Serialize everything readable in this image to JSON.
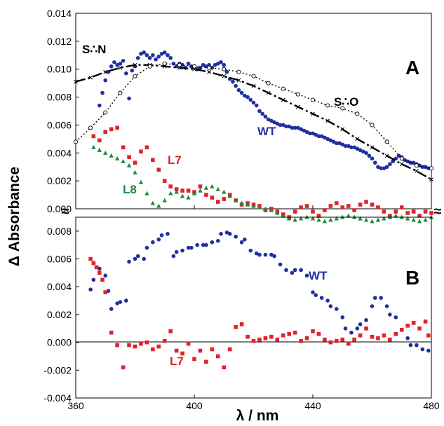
{
  "chart_data": {
    "type": "scatter",
    "xlabel": "λ / nm",
    "ylabel": "Δ Absorbance",
    "x_ticks": [
      "360",
      "400",
      "440",
      "480"
    ],
    "xlim": [
      360,
      480
    ],
    "panels": [
      {
        "label": "A",
        "ylim": [
          0,
          0.014
        ],
        "y_ticks": [
          "0.000",
          "0.002",
          "0.004",
          "0.006",
          "0.008",
          "0.010",
          "0.012",
          "0.014"
        ],
        "series": [
          {
            "name": "WT",
            "color": "#1f2fa0",
            "marker": "circle",
            "x": [
              368,
              369,
              370,
              371,
              372,
              373,
              374,
              375,
              376,
              377,
              378,
              379,
              380,
              381,
              382,
              383,
              384,
              385,
              386,
              387,
              388,
              389,
              390,
              391,
              392,
              393,
              394,
              395,
              396,
              397,
              398,
              399,
              400,
              401,
              402,
              403,
              404,
              405,
              406,
              407,
              408,
              409,
              410,
              411,
              412,
              413,
              414,
              415,
              416,
              417,
              418,
              419,
              420,
              421,
              422,
              423,
              424,
              425,
              426,
              427,
              428,
              429,
              430,
              431,
              432,
              433,
              434,
              435,
              436,
              437,
              438,
              439,
              440,
              441,
              442,
              443,
              444,
              445,
              446,
              447,
              448,
              449,
              450,
              451,
              452,
              453,
              454,
              455,
              456,
              457,
              458,
              459,
              460,
              461,
              462,
              463,
              464,
              465,
              466,
              467,
              468,
              469,
              470,
              471,
              472,
              473,
              474,
              475,
              476,
              477,
              478,
              479
            ],
            "y": [
              0.0074,
              0.0083,
              0.0092,
              0.0098,
              0.0102,
              0.0105,
              0.0103,
              0.0104,
              0.0106,
              0.0097,
              0.0079,
              0.0099,
              0.0102,
              0.0108,
              0.0111,
              0.0112,
              0.011,
              0.0108,
              0.011,
              0.0107,
              0.0109,
              0.0111,
              0.0112,
              0.011,
              0.0108,
              0.0104,
              0.0102,
              0.0104,
              0.0103,
              0.0101,
              0.0104,
              0.0102,
              0.0102,
              0.01,
              0.0101,
              0.0103,
              0.0102,
              0.0103,
              0.0101,
              0.0103,
              0.0104,
              0.0105,
              0.0103,
              0.0098,
              0.0093,
              0.0091,
              0.0088,
              0.0085,
              0.0083,
              0.0081,
              0.008,
              0.0078,
              0.0076,
              0.0074,
              0.007,
              0.0068,
              0.0066,
              0.0064,
              0.0063,
              0.0062,
              0.0061,
              0.006,
              0.006,
              0.0059,
              0.0059,
              0.0058,
              0.0058,
              0.0058,
              0.0057,
              0.0056,
              0.0055,
              0.0054,
              0.0054,
              0.0053,
              0.0052,
              0.0052,
              0.0051,
              0.005,
              0.0049,
              0.0048,
              0.0047,
              0.0047,
              0.0046,
              0.0045,
              0.0045,
              0.0044,
              0.0044,
              0.0043,
              0.0042,
              0.0041,
              0.004,
              0.0038,
              0.0036,
              0.0033,
              0.003,
              0.0029,
              0.0029,
              0.003,
              0.0032,
              0.0034,
              0.0036,
              0.0038,
              0.0037,
              0.0035,
              0.0034,
              0.0033,
              0.0033,
              0.0032,
              0.0031,
              0.003,
              0.003,
              0.0029
            ]
          },
          {
            "name": "S∴N",
            "color": "#000000",
            "marker": "x",
            "line": "dash-dot",
            "x": [
              360,
              365,
              370,
              375,
              380,
              385,
              390,
              395,
              400,
              405,
              410,
              415,
              420,
              425,
              430,
              435,
              440,
              445,
              450,
              455,
              460,
              465,
              470,
              475,
              480
            ],
            "y": [
              0.0091,
              0.0094,
              0.0098,
              0.0101,
              0.0103,
              0.0103,
              0.0102,
              0.0101,
              0.01,
              0.0098,
              0.0095,
              0.0092,
              0.0088,
              0.0083,
              0.0078,
              0.0073,
              0.0068,
              0.0063,
              0.0057,
              0.005,
              0.0044,
              0.0038,
              0.0032,
              0.0027,
              0.0021
            ]
          },
          {
            "name": "S∴O",
            "color": "#000000",
            "marker": "open-circle",
            "line": "dotted",
            "x": [
              360,
              365,
              370,
              375,
              380,
              385,
              390,
              395,
              400,
              405,
              410,
              415,
              420,
              425,
              430,
              435,
              440,
              445,
              450,
              455,
              460,
              465,
              470,
              475,
              480
            ],
            "y": [
              0.0048,
              0.0058,
              0.0069,
              0.0083,
              0.0095,
              0.0102,
              0.0104,
              0.0103,
              0.0102,
              0.0101,
              0.01,
              0.0098,
              0.0095,
              0.009,
              0.0086,
              0.0082,
              0.0078,
              0.0074,
              0.0072,
              0.0068,
              0.006,
              0.0048,
              0.0036,
              0.0031,
              0.0029
            ]
          },
          {
            "name": "L7",
            "color": "#e2222a",
            "marker": "square",
            "x": [
              366,
              368,
              370,
              372,
              374,
              376,
              378,
              380,
              382,
              384,
              386,
              388,
              390,
              392,
              394,
              396,
              398,
              400,
              402,
              404,
              406,
              408,
              410,
              412,
              414,
              416,
              418,
              420,
              422,
              424,
              426,
              428,
              430,
              432,
              434,
              436,
              438,
              440,
              442,
              444,
              446,
              448,
              450,
              452,
              454,
              456,
              458,
              460,
              462,
              464,
              466,
              468,
              470,
              472,
              474,
              476,
              478,
              480
            ],
            "y": [
              0.0052,
              0.0049,
              0.0055,
              0.0057,
              0.0058,
              0.0044,
              0.0037,
              0.0033,
              0.0041,
              0.0044,
              0.0035,
              0.0028,
              0.002,
              0.0016,
              0.0014,
              0.0013,
              0.0013,
              0.0012,
              0.0016,
              0.001,
              0.0008,
              0.0005,
              0.0007,
              0.001,
              0.0006,
              0.0003,
              0.0004,
              0.0003,
              0.0002,
              -0.0001,
              0.0,
              -0.0002,
              -0.0004,
              -0.0006,
              -0.0002,
              0.0001,
              0.0002,
              -0.0002,
              -0.0005,
              -0.0001,
              0.0002,
              0.0004,
              0.0001,
              0.0002,
              -0.0001,
              0.0003,
              0.0005,
              0.0003,
              0.0001,
              -0.0002,
              -0.0005,
              -0.0002,
              0.0001,
              -0.0003,
              -0.0002,
              -0.0005,
              -0.0002,
              -0.0003
            ]
          },
          {
            "name": "L8",
            "color": "#1d8a3a",
            "marker": "triangle",
            "x": [
              366,
              368,
              370,
              372,
              374,
              376,
              378,
              380,
              382,
              384,
              386,
              388,
              390,
              392,
              394,
              396,
              398,
              400,
              402,
              404,
              406,
              408,
              410,
              412,
              414,
              416,
              418,
              420,
              422,
              424,
              426,
              428,
              430,
              432,
              434,
              436,
              438,
              440,
              442,
              444,
              446,
              448,
              450,
              452,
              454,
              456,
              458,
              460,
              462,
              464,
              466,
              468,
              470,
              472,
              474,
              476,
              478,
              480
            ],
            "y": [
              0.0044,
              0.0042,
              0.004,
              0.0038,
              0.0036,
              0.0034,
              0.0031,
              0.0026,
              0.0019,
              0.0011,
              0.0004,
              0.0002,
              0.0006,
              0.0011,
              0.0012,
              0.0009,
              0.0008,
              0.0011,
              0.0013,
              0.0015,
              0.0016,
              0.0014,
              0.0012,
              0.0009,
              0.0006,
              0.0004,
              0.0003,
              0.0002,
              0.0001,
              0.0,
              -0.0001,
              -0.0003,
              -0.0005,
              -0.0007,
              -0.0008,
              -0.0007,
              -0.0006,
              -0.0007,
              -0.0008,
              -0.0009,
              -0.0008,
              -0.0007,
              -0.0006,
              -0.0005,
              -0.0006,
              -0.0007,
              -0.0008,
              -0.0009,
              -0.0008,
              -0.0007,
              -0.0006,
              -0.0005,
              -0.0006,
              -0.0007,
              -0.0008,
              -0.0009,
              -0.0008,
              -0.0006
            ]
          }
        ],
        "annotations": [
          "S∴N",
          "S∴O",
          "WT",
          "L7",
          "L8"
        ]
      },
      {
        "label": "B",
        "ylim": [
          -0.004,
          0.009
        ],
        "y_ticks": [
          "-0.004",
          "-0.002",
          "0.000",
          "0.002",
          "0.004",
          "0.006",
          "0.008"
        ],
        "series": [
          {
            "name": "WT",
            "color": "#1f2fa0",
            "marker": "circle",
            "x": [
              365,
              366,
              368,
              370,
              371,
              372,
              374,
              375,
              377,
              378,
              380,
              381,
              383,
              384,
              386,
              388,
              389,
              391,
              393,
              394,
              396,
              398,
              399,
              401,
              403,
              404,
              406,
              408,
              409,
              411,
              412,
              414,
              416,
              417,
              419,
              421,
              422,
              424,
              426,
              427,
              429,
              431,
              433,
              434,
              436,
              438,
              440,
              441,
              443,
              445,
              446,
              448,
              450,
              451,
              453,
              455,
              456,
              458,
              460,
              461,
              463,
              465,
              466,
              468,
              470,
              472,
              473,
              475,
              477,
              479
            ],
            "y": [
              0.0038,
              0.0045,
              0.0053,
              0.0048,
              0.0037,
              0.0024,
              0.0028,
              0.0029,
              0.003,
              0.0058,
              0.006,
              0.0062,
              0.006,
              0.0068,
              0.0072,
              0.0074,
              0.0077,
              0.0078,
              0.0062,
              0.0065,
              0.0066,
              0.0068,
              0.0068,
              0.007,
              0.007,
              0.007,
              0.0072,
              0.0073,
              0.0078,
              0.0079,
              0.0078,
              0.0076,
              0.0072,
              0.0074,
              0.0066,
              0.0064,
              0.0063,
              0.0063,
              0.0063,
              0.0062,
              0.0056,
              0.0052,
              0.005,
              0.0052,
              0.0052,
              0.0048,
              0.0036,
              0.0034,
              0.0032,
              0.003,
              0.0026,
              0.0024,
              0.0018,
              0.001,
              0.0007,
              0.001,
              0.0013,
              0.0016,
              0.0026,
              0.0032,
              0.0032,
              0.0026,
              0.002,
              0.0018,
              0.0009,
              0.0003,
              -0.0002,
              -0.0002,
              -0.0005,
              -0.0006
            ]
          },
          {
            "name": "L7",
            "color": "#e2222a",
            "marker": "square",
            "x": [
              365,
              366,
              367,
              368,
              369,
              370,
              372,
              374,
              376,
              378,
              380,
              382,
              384,
              386,
              388,
              390,
              392,
              394,
              396,
              398,
              400,
              402,
              404,
              406,
              408,
              410,
              412,
              414,
              416,
              418,
              420,
              422,
              424,
              426,
              428,
              430,
              432,
              434,
              436,
              438,
              440,
              442,
              444,
              446,
              448,
              450,
              452,
              454,
              456,
              458,
              460,
              462,
              464,
              466,
              468,
              470,
              472,
              474,
              476,
              478,
              479
            ],
            "y": [
              0.006,
              0.0057,
              0.0054,
              0.005,
              0.0045,
              0.0036,
              0.0007,
              -0.0002,
              -0.0018,
              -0.0002,
              -0.0003,
              -0.0001,
              0.0,
              -0.0005,
              -0.0003,
              0.0001,
              0.0008,
              -0.0006,
              -0.0008,
              -0.0001,
              -0.0012,
              -0.0006,
              -0.0014,
              -0.0005,
              -0.001,
              -0.0018,
              -0.0005,
              0.0011,
              0.0013,
              0.0004,
              0.0001,
              0.0002,
              0.0003,
              0.0004,
              0.0002,
              0.0005,
              0.0006,
              0.0007,
              0.0001,
              0.0003,
              0.0008,
              0.0006,
              0.0002,
              0.0,
              0.0001,
              0.0002,
              -0.0001,
              0.0002,
              0.0005,
              0.001,
              0.0004,
              0.0003,
              0.0005,
              0.0002,
              0.0006,
              0.0009,
              0.0012,
              0.0014,
              0.001,
              0.0015,
              0.0005
            ]
          }
        ],
        "annotations": [
          "WT",
          "L7"
        ]
      }
    ],
    "axis_break_marks": [
      "≈",
      "≈"
    ]
  }
}
